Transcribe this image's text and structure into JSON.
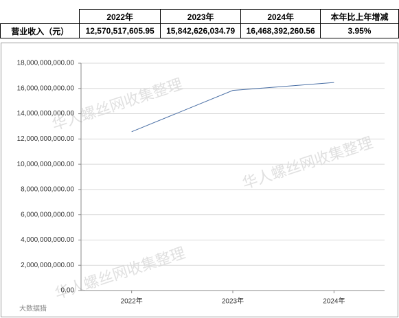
{
  "table": {
    "header": [
      "2022年",
      "2023年",
      "2024年",
      "本年比上年增减"
    ],
    "rows": [
      [
        "营业收入（元）",
        "12,570,517,605.95",
        "15,842,626,034.79",
        "16,468,392,260.56",
        "3.95%"
      ]
    ]
  },
  "chart_data": {
    "type": "line",
    "categories": [
      "2022年",
      "2023年",
      "2024年"
    ],
    "values": [
      12570517605.95,
      15842626034.79,
      16468392260.56
    ],
    "color": "#4a6fa5",
    "ylim": [
      0,
      18000000000
    ],
    "yticks": [
      {
        "value": 0,
        "label": "0.00"
      },
      {
        "value": 2000000000,
        "label": "2,000,000,000.00"
      },
      {
        "value": 4000000000,
        "label": "4,000,000,000.00"
      },
      {
        "value": 6000000000,
        "label": "6,000,000,000.00"
      },
      {
        "value": 8000000000,
        "label": "8,000,000,000.00"
      },
      {
        "value": 10000000000,
        "label": "10,000,000,000.00"
      },
      {
        "value": 12000000000,
        "label": "12,000,000,000.00"
      },
      {
        "value": 14000000000,
        "label": "14,000,000,000.00"
      },
      {
        "value": 16000000000,
        "label": "16,000,000,000.00"
      },
      {
        "value": 18000000000,
        "label": "18,000,000,000.00"
      }
    ],
    "grid": true
  },
  "watermark": "华人螺丝网收集整理",
  "logo_text": "大数据猎"
}
